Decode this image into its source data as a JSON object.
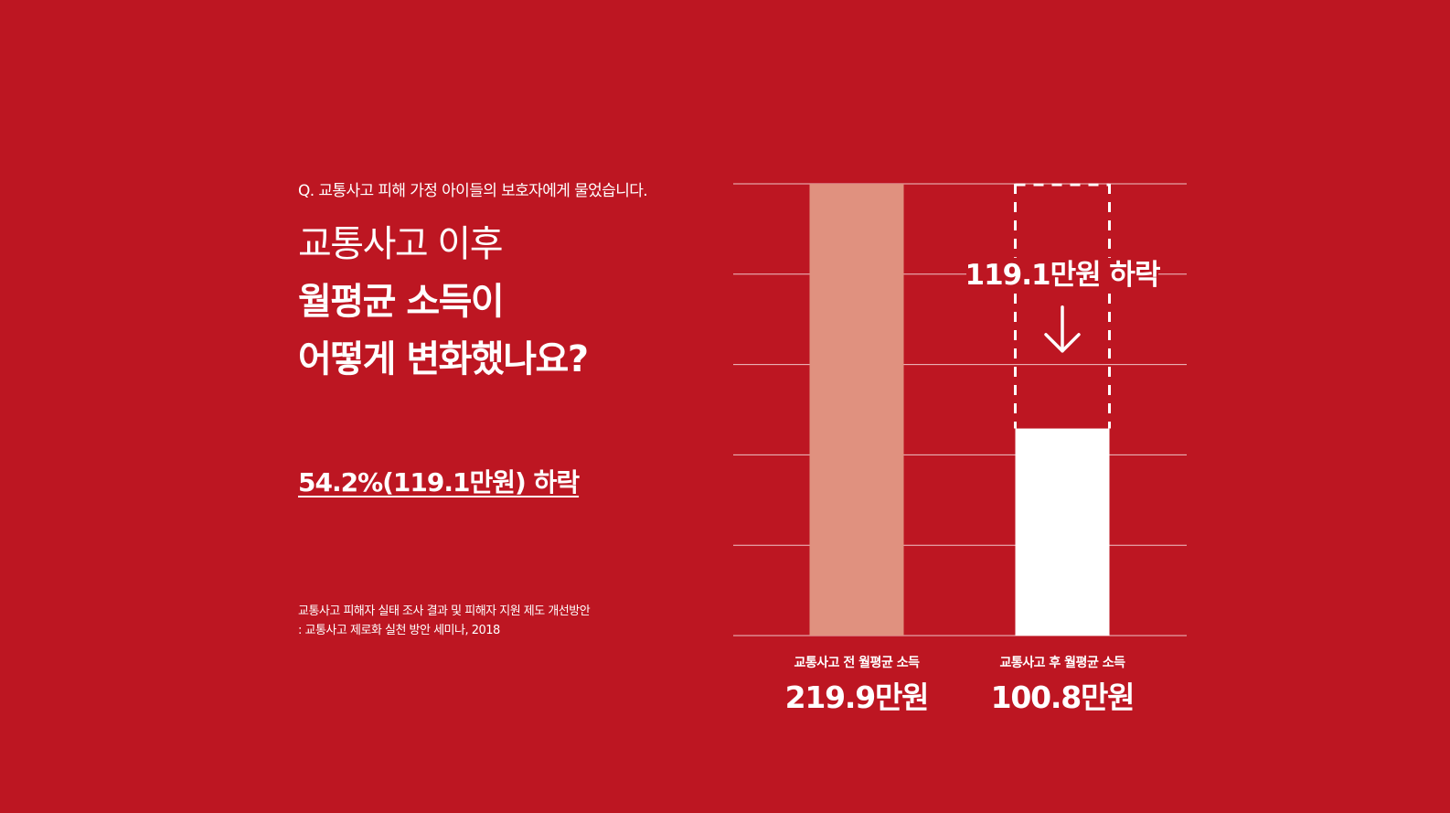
{
  "question": "Q. 교통사고 피해 가정 아이들의 보호자에게 물었습니다.",
  "headline": {
    "line1": "교통사고 이후",
    "line2": "월평균 소득이",
    "line3": "어떻게 변화했나요?"
  },
  "highlight": "54.2%(119.1만원) 하락",
  "source": {
    "line1": "교통사고 피해자 실태 조사 결과 및 피해자 지원 제도 개선방안",
    "line2": ": 교통사고 제로화 실천 방안 세미나, 2018"
  },
  "colors": {
    "background": "#bd1622",
    "before_bar": "#e0917f",
    "after_bar": "#ffffff",
    "text": "#ffffff"
  },
  "chart_data": {
    "type": "bar",
    "categories": [
      "교통사고 전 월평균 소득",
      "교통사고 후 월평균 소득"
    ],
    "values": [
      219.9,
      100.8
    ],
    "value_labels": [
      "219.9만원",
      "100.8만원"
    ],
    "ylim": [
      0,
      219.9
    ],
    "grid": true,
    "gridline_count": 5,
    "annotation": {
      "text": "119.1만원 하락",
      "value": 119.1,
      "from": 219.9,
      "to": 100.8,
      "icon": "arrow-down-icon"
    }
  }
}
